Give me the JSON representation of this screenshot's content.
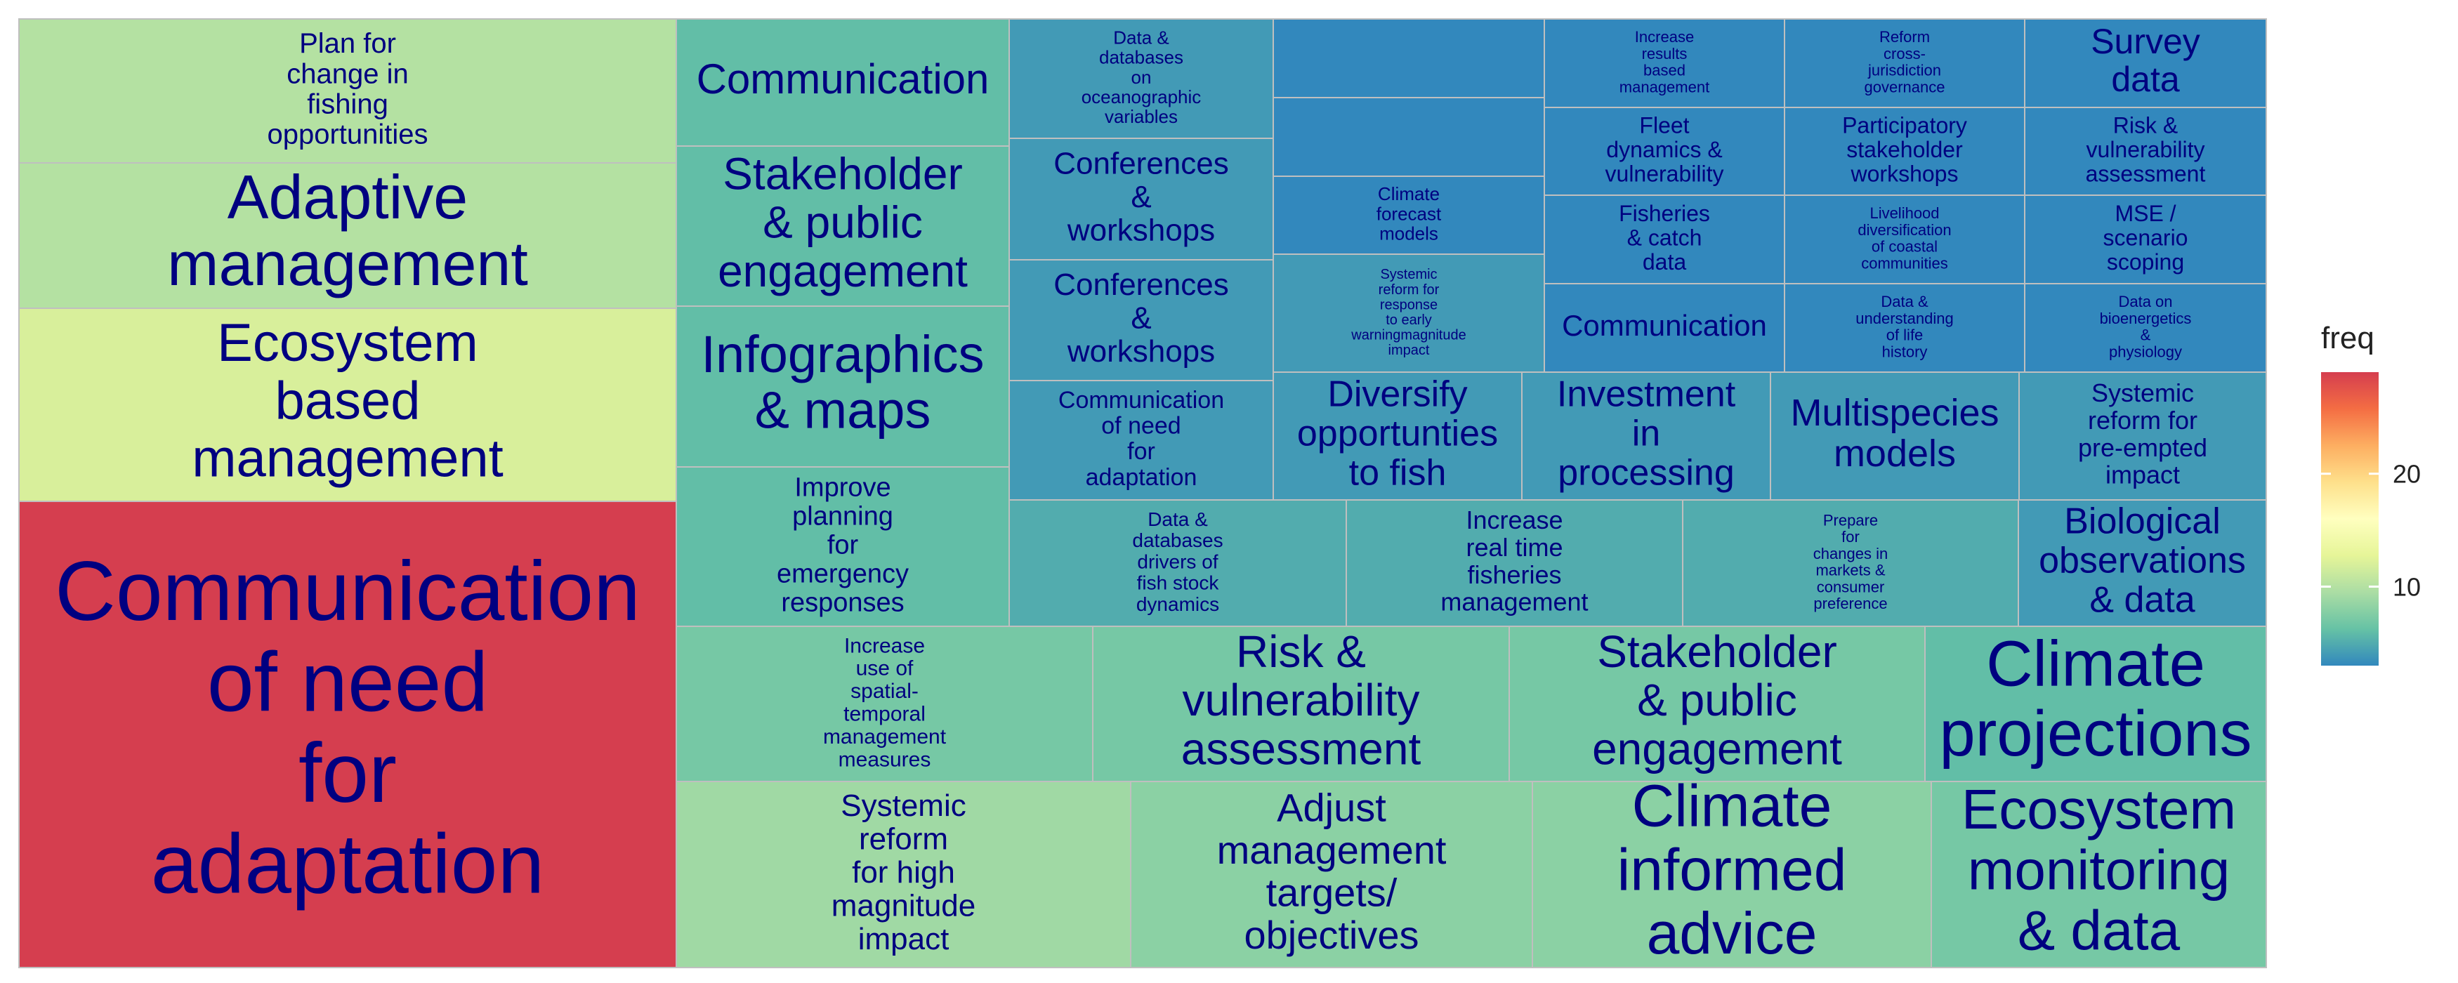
{
  "chart_data": {
    "type": "treemap",
    "value_field": "freq",
    "legend": {
      "title": "freq",
      "placement": "right",
      "ticks": [
        10,
        20
      ],
      "range": [
        3,
        29
      ],
      "colors": [
        "#3288BD",
        "#66C2A5",
        "#ABDDA4",
        "#E6F598",
        "#FFFFBF",
        "#FEE08B",
        "#FDAE61",
        "#F46D43",
        "#D53E4F"
      ]
    },
    "tiles": [
      {
        "label": "Communication of need for adaptation",
        "freq": 29
      },
      {
        "label": "Ecosystem based management",
        "freq": 12
      },
      {
        "label": "Adaptive management",
        "freq": 10
      },
      {
        "label": "Plan for change in fishing opportunities",
        "freq": 10
      },
      {
        "label": "Communication",
        "freq": 6
      },
      {
        "label": "Stakeholder & public engagement",
        "freq": 6
      },
      {
        "label": "Infographics & maps",
        "freq": 6
      },
      {
        "label": "Improve planning for emergency responses",
        "freq": 6
      },
      {
        "label": "Data & databases on oceanographic variables",
        "freq": 4
      },
      {
        "label": "Conferences & workshops",
        "freq": 4
      },
      {
        "label": "Conferences & workshops",
        "freq": 4
      },
      {
        "label": "Communication of need for adaptation",
        "freq": 4
      },
      {
        "label": "",
        "freq": 3
      },
      {
        "label": "",
        "freq": 3
      },
      {
        "label": "Climate forecast models",
        "freq": 3
      },
      {
        "label": "Systemic reform for response to early warningmagnitude impact",
        "freq": 4
      },
      {
        "label": "Increase results based management",
        "freq": 3
      },
      {
        "label": "Reform cross-jurisdiction governance",
        "freq": 3
      },
      {
        "label": "Survey data",
        "freq": 3
      },
      {
        "label": "Fleet dynamics & vulnerability",
        "freq": 3
      },
      {
        "label": "Participatory stakeholder workshops",
        "freq": 3
      },
      {
        "label": "Risk & vulnerability assessment",
        "freq": 3
      },
      {
        "label": "Fisheries & catch data",
        "freq": 3
      },
      {
        "label": "Livelihood diversification of coastal communities",
        "freq": 3
      },
      {
        "label": "MSE / scenario scoping",
        "freq": 3
      },
      {
        "label": "Communication",
        "freq": 3
      },
      {
        "label": "Data & understanding of life history",
        "freq": 3
      },
      {
        "label": "Data on bioenergetics & physiology",
        "freq": 3
      },
      {
        "label": "Diversify opportunties to fish",
        "freq": 4
      },
      {
        "label": "Investment in processing",
        "freq": 4
      },
      {
        "label": "Multispecies models",
        "freq": 4
      },
      {
        "label": "Systemic reform for pre-empted impact",
        "freq": 4
      },
      {
        "label": "Data & databases drivers of fish stock dynamics",
        "freq": 5
      },
      {
        "label": "Increase real time fisheries management",
        "freq": 5
      },
      {
        "label": "Prepare for changes in markets & consumer preference",
        "freq": 5
      },
      {
        "label": "Biological observations & data",
        "freq": 4
      },
      {
        "label": "Increase use of spatial-temporal management measures",
        "freq": 7
      },
      {
        "label": "Risk & vulnerability assessment",
        "freq": 7
      },
      {
        "label": "Stakeholder & public engagement",
        "freq": 7
      },
      {
        "label": "Climate projections",
        "freq": 6
      },
      {
        "label": "Systemic reform for high magnitude impact",
        "freq": 9
      },
      {
        "label": "Adjust management targets/ objectives",
        "freq": 8
      },
      {
        "label": "Climate informed advice",
        "freq": 8
      },
      {
        "label": "Ecosystem monitoring & data",
        "freq": 7
      }
    ]
  }
}
